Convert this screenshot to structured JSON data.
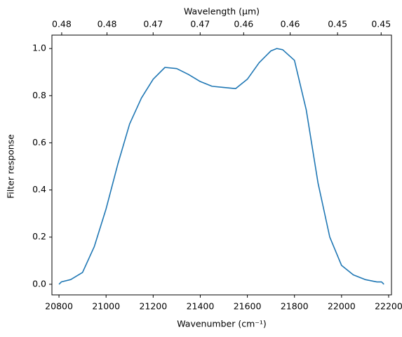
{
  "chart_data": {
    "type": "line",
    "xlabel": "Wavenumber (cm⁻¹)",
    "ylabel": "Filter response",
    "x2label": "Wavelength (μm)",
    "x": [
      20800,
      20810,
      20850,
      20900,
      20950,
      21000,
      21050,
      21100,
      21150,
      21200,
      21250,
      21300,
      21350,
      21400,
      21450,
      21500,
      21550,
      21600,
      21650,
      21700,
      21725,
      21750,
      21800,
      21850,
      21900,
      21950,
      22000,
      22050,
      22100,
      22150,
      22170,
      22180
    ],
    "series": [
      {
        "name": "Filter response",
        "color": "#1f77b4",
        "values": [
          0.0,
          0.01,
          0.02,
          0.05,
          0.16,
          0.32,
          0.51,
          0.68,
          0.79,
          0.87,
          0.92,
          0.915,
          0.89,
          0.86,
          0.84,
          0.835,
          0.83,
          0.87,
          0.94,
          0.99,
          1.0,
          0.995,
          0.95,
          0.74,
          0.43,
          0.2,
          0.08,
          0.04,
          0.02,
          0.01,
          0.01,
          0.0
        ]
      }
    ],
    "xlim": [
      20770,
      22212
    ],
    "xticks": [
      20800,
      21000,
      21200,
      21400,
      21600,
      21800,
      22000,
      22200
    ],
    "ylim": [
      -0.045,
      1.057
    ],
    "yticks": [
      {
        "value": 0.0,
        "label": "0.0"
      },
      {
        "value": 0.2,
        "label": "0.2"
      },
      {
        "value": 0.4,
        "label": "0.4"
      },
      {
        "value": 0.6,
        "label": "0.6"
      },
      {
        "value": 0.8,
        "label": "0.8"
      },
      {
        "value": 1.0,
        "label": "1.0"
      }
    ],
    "x2scale": "reciprocal",
    "x2lim": [
      0.48146,
      0.45021
    ],
    "x2ticks": [
      {
        "value": 0.4805,
        "label": "0.48"
      },
      {
        "value": 0.4761,
        "label": "0.48"
      },
      {
        "value": 0.4717,
        "label": "0.47"
      },
      {
        "value": 0.4673,
        "label": "0.47"
      },
      {
        "value": 0.4633,
        "label": "0.46"
      },
      {
        "value": 0.4591,
        "label": "0.46"
      },
      {
        "value": 0.4549,
        "label": "0.45"
      },
      {
        "value": 0.4511,
        "label": "0.45"
      }
    ],
    "grid": false
  }
}
